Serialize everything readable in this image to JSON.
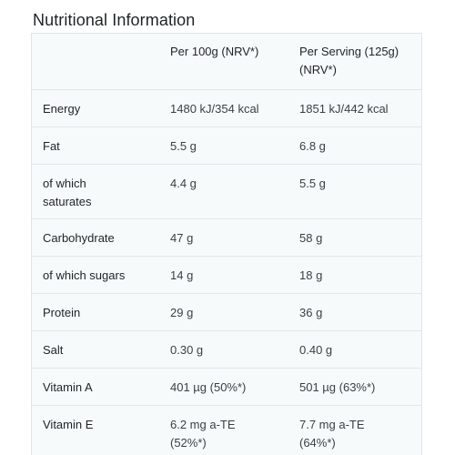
{
  "title": "Nutritional Information",
  "columns": {
    "per100": "Per 100g (NRV*)",
    "perServing_line1": "Per Serving (125g)",
    "perServing_line2": "(NRV*)"
  },
  "rows": [
    {
      "name": "Energy",
      "per100": "1480 kJ/354 kcal",
      "serving": "1851 kJ/442 kcal"
    },
    {
      "name": "Fat",
      "per100": "5.5 g",
      "serving": "6.8 g"
    },
    {
      "name_line1": "of which",
      "name_line2": "saturates",
      "per100": "4.4 g",
      "serving": "5.5 g"
    },
    {
      "name": "Carbohydrate",
      "per100": "47 g",
      "serving": "58 g"
    },
    {
      "name": "of which sugars",
      "per100": "14 g",
      "serving": "18 g"
    },
    {
      "name": "Protein",
      "per100": "29 g",
      "serving": "36 g"
    },
    {
      "name": "Salt",
      "per100": "0.30 g",
      "serving": "0.40 g"
    },
    {
      "name": "Vitamin A",
      "per100": "401 µg (50%*)",
      "serving": "501 µg (63%*)"
    },
    {
      "name": "Vitamin E",
      "per100_line1": "6.2 mg a-TE",
      "per100_line2": "(52%*)",
      "serving_line1": "7.7 mg a-TE",
      "serving_line2": "(64%*)"
    }
  ]
}
